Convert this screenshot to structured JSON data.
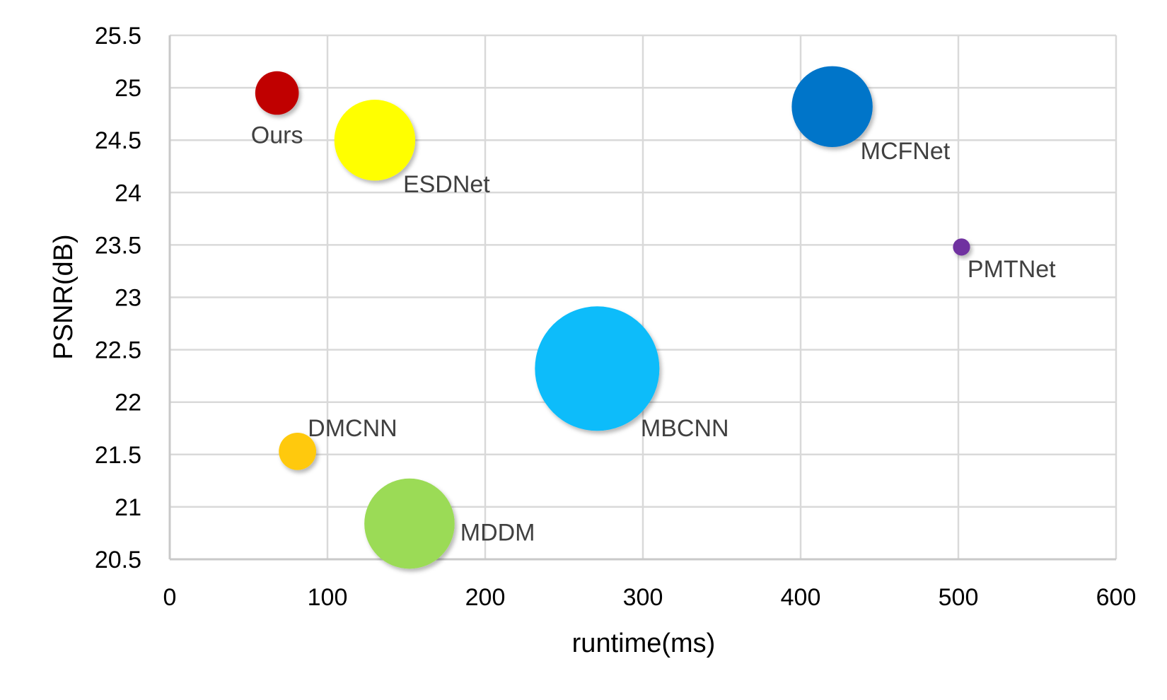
{
  "chart_data": {
    "type": "scatter",
    "subtype": "bubble",
    "xlabel": "runtime(ms)",
    "ylabel": "PSNR(dB)",
    "xlim": [
      0,
      600
    ],
    "ylim": [
      20.5,
      25.5
    ],
    "xticks": [
      "0",
      "100",
      "200",
      "300",
      "400",
      "500",
      "600"
    ],
    "yticks": [
      "20.5",
      "21",
      "21.5",
      "22",
      "22.5",
      "23",
      "23.5",
      "24",
      "24.5",
      "25",
      "25.5"
    ],
    "grid": true,
    "points": [
      {
        "label": "Ours",
        "x": 68,
        "y": 24.95,
        "size": 2.8,
        "color": "#c00000",
        "label_pos": "below"
      },
      {
        "label": "ESDNet",
        "x": 130,
        "y": 24.5,
        "size": 5.2,
        "color": "#ffff00",
        "label_pos": "below-right"
      },
      {
        "label": "MCFNet",
        "x": 420,
        "y": 24.82,
        "size": 5.2,
        "color": "#0575c9",
        "label_pos": "below-right"
      },
      {
        "label": "PMTNet",
        "x": 502,
        "y": 23.48,
        "size": 1.1,
        "color": "#7030a0",
        "label_pos": "below-right"
      },
      {
        "label": "MBCNN",
        "x": 271,
        "y": 22.32,
        "size": 8.0,
        "color": "#0abcfa",
        "label_pos": "below-right"
      },
      {
        "label": "DMCNN",
        "x": 81,
        "y": 21.53,
        "size": 2.4,
        "color": "#ffc90e",
        "label_pos": "above-right"
      },
      {
        "label": "MDDM",
        "x": 152,
        "y": 20.84,
        "size": 5.8,
        "color": "#9bdb57",
        "label_pos": "right"
      }
    ]
  }
}
